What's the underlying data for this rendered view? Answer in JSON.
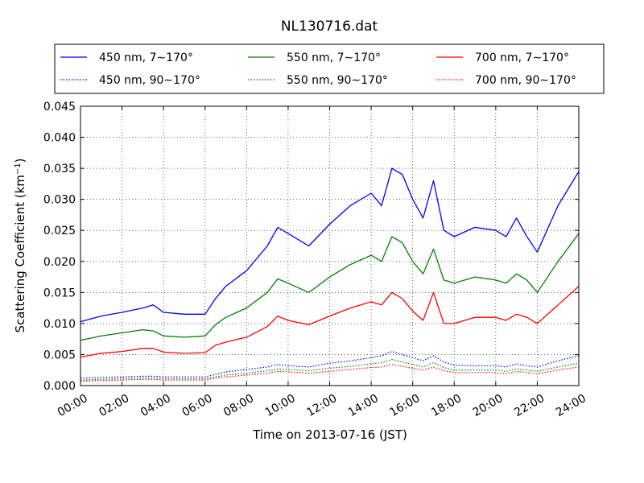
{
  "chart_data": {
    "type": "line",
    "title": "NL130716.dat",
    "xlabel": "Time on 2013-07-16 (JST)",
    "ylabel_main": "Scattering Coefficient (km",
    "ylabel_sup": "−1",
    "ylabel_end": ")",
    "xlim": [
      0,
      24
    ],
    "ylim": [
      0,
      0.045
    ],
    "xticks": [
      0,
      2,
      4,
      6,
      8,
      10,
      12,
      14,
      16,
      18,
      20,
      22,
      24
    ],
    "xtick_labels": [
      "00:00",
      "02:00",
      "04:00",
      "06:00",
      "08:00",
      "10:00",
      "12:00",
      "14:00",
      "16:00",
      "18:00",
      "20:00",
      "22:00",
      "24:00"
    ],
    "yticks": [
      0,
      0.005,
      0.01,
      0.015,
      0.02,
      0.025,
      0.03,
      0.035,
      0.04,
      0.045
    ],
    "ytick_labels": [
      "0.000",
      "0.005",
      "0.010",
      "0.015",
      "0.020",
      "0.025",
      "0.030",
      "0.035",
      "0.040",
      "0.045"
    ],
    "grid": true,
    "legend_position": "top",
    "x": [
      0,
      1,
      2,
      3,
      3.5,
      4,
      5,
      6,
      6.5,
      7,
      8,
      9,
      9.5,
      10,
      11,
      12,
      13,
      14,
      14.5,
      15,
      15.5,
      16,
      16.5,
      17,
      17.5,
      18,
      19,
      20,
      20.5,
      21,
      21.5,
      22,
      23,
      24
    ],
    "series": [
      {
        "name": "450 nm, 7∼170°",
        "color": "#0000ff",
        "style": "solid",
        "values": [
          0.0103,
          0.0112,
          0.0118,
          0.0125,
          0.013,
          0.0118,
          0.0115,
          0.0115,
          0.014,
          0.016,
          0.0185,
          0.0225,
          0.0255,
          0.0245,
          0.0225,
          0.026,
          0.029,
          0.031,
          0.029,
          0.035,
          0.034,
          0.03,
          0.027,
          0.033,
          0.025,
          0.024,
          0.0255,
          0.025,
          0.024,
          0.027,
          0.024,
          0.0215,
          0.029,
          0.0345
        ]
      },
      {
        "name": "550 nm, 7∼170°",
        "color": "#008000",
        "style": "solid",
        "values": [
          0.0073,
          0.008,
          0.0085,
          0.009,
          0.0088,
          0.008,
          0.0078,
          0.008,
          0.0098,
          0.011,
          0.0125,
          0.015,
          0.0172,
          0.0165,
          0.015,
          0.0175,
          0.0195,
          0.021,
          0.02,
          0.024,
          0.023,
          0.02,
          0.018,
          0.022,
          0.017,
          0.0165,
          0.0175,
          0.017,
          0.0165,
          0.018,
          0.017,
          0.015,
          0.02,
          0.0245
        ]
      },
      {
        "name": "700 nm, 7∼170°",
        "color": "#ff0000",
        "style": "solid",
        "values": [
          0.0046,
          0.0052,
          0.0055,
          0.006,
          0.006,
          0.0054,
          0.0052,
          0.0053,
          0.0065,
          0.007,
          0.0078,
          0.0095,
          0.0112,
          0.0105,
          0.0098,
          0.0112,
          0.0125,
          0.0135,
          0.013,
          0.015,
          0.014,
          0.012,
          0.0105,
          0.015,
          0.01,
          0.01,
          0.011,
          0.011,
          0.0105,
          0.0115,
          0.011,
          0.01,
          0.013,
          0.016
        ]
      },
      {
        "name": "450 nm, 90∼170°",
        "color": "#0000ff",
        "style": "dotted",
        "values": [
          0.0012,
          0.0013,
          0.0014,
          0.0015,
          0.0015,
          0.0014,
          0.0014,
          0.0014,
          0.0018,
          0.0022,
          0.0026,
          0.003,
          0.0034,
          0.0032,
          0.003,
          0.0036,
          0.004,
          0.0045,
          0.0048,
          0.0055,
          0.005,
          0.0045,
          0.004,
          0.0048,
          0.0038,
          0.0033,
          0.0032,
          0.0032,
          0.003,
          0.0035,
          0.0032,
          0.003,
          0.004,
          0.0048
        ]
      },
      {
        "name": "550 nm, 90∼170°",
        "color": "#008000",
        "style": "dotted",
        "values": [
          0.0009,
          0.001,
          0.0011,
          0.0012,
          0.0012,
          0.0011,
          0.0011,
          0.0011,
          0.0014,
          0.0017,
          0.002,
          0.0024,
          0.0027,
          0.0026,
          0.0024,
          0.0028,
          0.0031,
          0.0035,
          0.0037,
          0.0042,
          0.0038,
          0.0034,
          0.003,
          0.0037,
          0.0029,
          0.0025,
          0.0025,
          0.0025,
          0.0023,
          0.0027,
          0.0025,
          0.0023,
          0.003,
          0.0036
        ]
      },
      {
        "name": "700 nm, 90∼170°",
        "color": "#ff0000",
        "style": "dotted",
        "values": [
          0.0007,
          0.0008,
          0.0009,
          0.001,
          0.001,
          0.0009,
          0.0009,
          0.0009,
          0.0012,
          0.0014,
          0.0017,
          0.002,
          0.0023,
          0.0022,
          0.002,
          0.0023,
          0.0026,
          0.0029,
          0.003,
          0.0034,
          0.0031,
          0.0028,
          0.0025,
          0.003,
          0.0024,
          0.0021,
          0.0021,
          0.0021,
          0.0019,
          0.0023,
          0.0021,
          0.0019,
          0.0025,
          0.003
        ]
      }
    ]
  }
}
